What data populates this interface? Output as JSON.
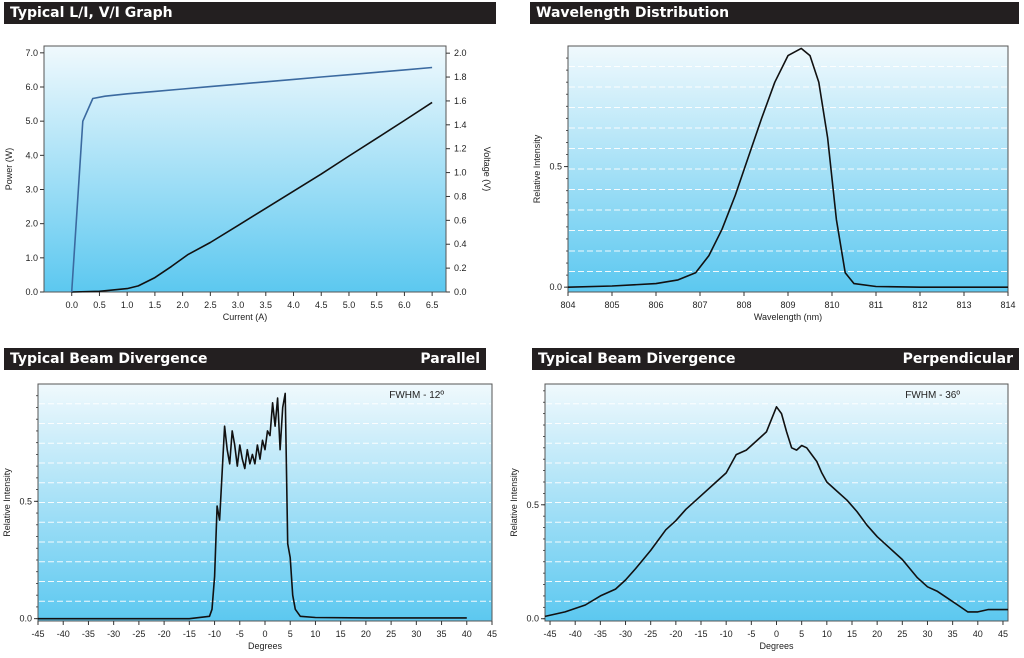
{
  "panels": {
    "li": {
      "title": "Typical L/I, V/I Graph"
    },
    "wave": {
      "title": "Wavelength Distribution"
    },
    "par": {
      "title": "Typical Beam Divergence",
      "subtitle": "Parallel"
    },
    "perp": {
      "title": "Typical Beam Divergence",
      "subtitle": "Perpendicular"
    }
  },
  "colors": {
    "plot_top": "#f0f9fd",
    "plot_bottom": "#5cc8f0",
    "power_line": "#111111",
    "voltage_line": "#3b6aa0"
  },
  "chart_data": [
    {
      "id": "li",
      "type": "line",
      "title": "Typical L/I, V/I Graph",
      "xlabel": "Current (A)",
      "ylabel": "Power (W)",
      "y2label": "Voltage (V)",
      "xlim": [
        -0.5,
        6.75
      ],
      "ylim": [
        0,
        7.2
      ],
      "y2lim": [
        0,
        2.06
      ],
      "xticks": [
        "0.0",
        "0.5",
        "1.0",
        "1.5",
        "2.0",
        "2.5",
        "3.0",
        "3.5",
        "4.0",
        "4.5",
        "5.0",
        "5.5",
        "6.0",
        "6.5"
      ],
      "yticks": [
        "0.0",
        "1.0",
        "2.0",
        "3.0",
        "4.0",
        "5.0",
        "6.0",
        "7.0"
      ],
      "y2ticks": [
        "0.0",
        "0.2",
        "0.4",
        "0.6",
        "0.8",
        "1.0",
        "1.2",
        "1.4",
        "1.6",
        "1.8",
        "2.0"
      ],
      "grid": false,
      "series": [
        {
          "axis": "left",
          "color": "#111111",
          "x": [
            0.0,
            0.5,
            1.0,
            1.2,
            1.5,
            1.8,
            2.1,
            2.5,
            3.0,
            3.5,
            4.0,
            4.5,
            5.0,
            5.5,
            6.0,
            6.5
          ],
          "y": [
            0.0,
            0.02,
            0.1,
            0.18,
            0.42,
            0.75,
            1.1,
            1.45,
            1.95,
            2.45,
            2.95,
            3.45,
            3.98,
            4.5,
            5.02,
            5.55
          ]
        },
        {
          "axis": "right",
          "color": "#3b6aa0",
          "x": [
            0.0,
            0.2,
            0.38,
            0.6,
            1.0,
            1.5,
            2.0,
            2.5,
            3.0,
            3.5,
            4.0,
            4.5,
            5.0,
            5.5,
            6.0,
            6.5
          ],
          "y": [
            0.0,
            1.43,
            1.62,
            1.64,
            1.66,
            1.68,
            1.7,
            1.72,
            1.74,
            1.76,
            1.78,
            1.8,
            1.82,
            1.84,
            1.86,
            1.88
          ]
        }
      ]
    },
    {
      "id": "wave",
      "type": "line",
      "title": "Wavelength Distribution",
      "xlabel": "Wavelength (nm)",
      "ylabel": "Relative Intensity",
      "xlim": [
        804,
        814
      ],
      "ylim": [
        -0.02,
        1.0
      ],
      "xticks": [
        "804",
        "805",
        "806",
        "807",
        "808",
        "809",
        "810",
        "811",
        "812",
        "813",
        "814"
      ],
      "yticks": [
        "0.0",
        "0.5"
      ],
      "grid": "dashed horizontal",
      "series": [
        {
          "color": "#111111",
          "x": [
            804.0,
            805.0,
            806.0,
            806.5,
            806.9,
            807.2,
            807.5,
            807.8,
            808.1,
            808.4,
            808.7,
            809.0,
            809.3,
            809.5,
            809.7,
            809.9,
            810.1,
            810.3,
            810.5,
            811.0,
            812.0,
            813.0,
            814.0
          ],
          "y": [
            0.0,
            0.005,
            0.015,
            0.03,
            0.06,
            0.13,
            0.24,
            0.38,
            0.54,
            0.7,
            0.85,
            0.96,
            0.99,
            0.96,
            0.85,
            0.62,
            0.28,
            0.06,
            0.015,
            0.003,
            0.0,
            0.0,
            0.0
          ]
        }
      ]
    },
    {
      "id": "par",
      "type": "line",
      "title": "Typical Beam Divergence",
      "subtitle": "Parallel",
      "annotation": "FWHM - 12º",
      "xlabel": "Degrees",
      "ylabel": "Relative Intensity",
      "xlim": [
        -45,
        45
      ],
      "ylim": [
        -0.01,
        1.0
      ],
      "xticks": [
        "-45",
        "-40",
        "-35",
        "-30",
        "-25",
        "-20",
        "-15",
        "-10",
        "-5",
        "0",
        "5",
        "10",
        "15",
        "20",
        "25",
        "30",
        "35",
        "40",
        "45"
      ],
      "yticks": [
        "0.0",
        "0.5"
      ],
      "grid": "dashed horizontal",
      "series": [
        {
          "color": "#111111",
          "x": [
            -45,
            -30,
            -15,
            -11,
            -10.5,
            -10,
            -9.5,
            -9,
            -8.5,
            -8,
            -7.5,
            -7,
            -6.5,
            -6,
            -5.5,
            -5,
            -4.5,
            -4,
            -3.5,
            -3,
            -2.5,
            -2,
            -1.5,
            -1,
            -0.5,
            0,
            0.5,
            1,
            1.5,
            2,
            2.5,
            3,
            3.5,
            4,
            4.5,
            5,
            5.5,
            6,
            7,
            10,
            20,
            30,
            40
          ],
          "y": [
            0.0,
            0.0,
            0.0,
            0.01,
            0.04,
            0.18,
            0.48,
            0.42,
            0.62,
            0.82,
            0.72,
            0.66,
            0.8,
            0.74,
            0.65,
            0.74,
            0.68,
            0.64,
            0.72,
            0.66,
            0.7,
            0.66,
            0.74,
            0.68,
            0.76,
            0.72,
            0.8,
            0.78,
            0.92,
            0.82,
            0.94,
            0.72,
            0.9,
            0.96,
            0.32,
            0.26,
            0.1,
            0.04,
            0.01,
            0.005,
            0.003,
            0.003,
            0.003
          ]
        }
      ]
    },
    {
      "id": "perp",
      "type": "line",
      "title": "Typical Beam Divergence",
      "subtitle": "Perpendicular",
      "annotation": "FWHM - 36º",
      "xlabel": "Degrees",
      "ylabel": "Relative Intensity",
      "xlim": [
        -46,
        46
      ],
      "ylim": [
        -0.01,
        1.03
      ],
      "xticks": [
        "-45",
        "-40",
        "-35",
        "-30",
        "-25",
        "-20",
        "-15",
        "-10",
        "-5",
        "0",
        "5",
        "10",
        "15",
        "20",
        "25",
        "30",
        "35",
        "40",
        "45"
      ],
      "yticks": [
        "0.0",
        "0.5"
      ],
      "grid": "dashed horizontal",
      "series": [
        {
          "color": "#111111",
          "x": [
            -46,
            -42,
            -38,
            -35,
            -32,
            -30,
            -28,
            -25,
            -22,
            -20,
            -18,
            -15,
            -12,
            -10,
            -8,
            -6,
            -4,
            -2,
            0,
            1,
            2,
            3,
            4,
            5,
            6,
            7,
            8,
            9,
            10,
            12,
            14,
            16,
            18,
            20,
            22,
            25,
            28,
            30,
            32,
            34,
            36,
            38,
            40,
            42,
            44,
            46
          ],
          "y": [
            0.01,
            0.03,
            0.06,
            0.1,
            0.13,
            0.17,
            0.22,
            0.3,
            0.39,
            0.43,
            0.48,
            0.54,
            0.6,
            0.64,
            0.72,
            0.74,
            0.78,
            0.82,
            0.93,
            0.9,
            0.82,
            0.75,
            0.74,
            0.76,
            0.75,
            0.72,
            0.69,
            0.64,
            0.6,
            0.56,
            0.52,
            0.47,
            0.41,
            0.36,
            0.32,
            0.26,
            0.18,
            0.14,
            0.12,
            0.09,
            0.06,
            0.03,
            0.03,
            0.04,
            0.04,
            0.04
          ]
        }
      ]
    }
  ]
}
